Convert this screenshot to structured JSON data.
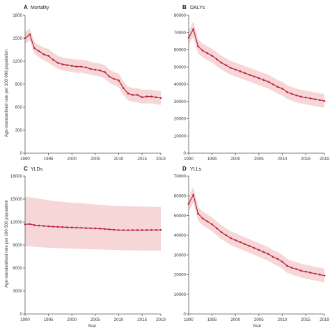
{
  "figure": {
    "ylabel": "Age-standardised rate per 100 000 population",
    "xlabel": "Year",
    "colors": {
      "line": "#b8203c",
      "band": "#f6d6d6",
      "axis": "#555555"
    }
  },
  "chart_data": [
    {
      "type": "line",
      "letter": "A",
      "title": "Mortality",
      "ylim": [
        0,
        1800
      ],
      "yticks": [
        0,
        300,
        600,
        900,
        1200,
        1500,
        1800
      ],
      "ytick_labels": [
        "0",
        "300",
        "600",
        "900",
        "1200",
        "1500",
        "1800"
      ],
      "xlim": [
        1990,
        2019
      ],
      "xticks": [
        1990,
        1995,
        2000,
        2005,
        2010,
        2015,
        2019
      ],
      "xtick_labels": [
        "1990",
        "1995",
        "2000",
        "2005",
        "2010",
        "2015",
        "2019"
      ],
      "x": [
        1990,
        1991,
        1992,
        1993,
        1994,
        1995,
        1996,
        1997,
        1998,
        1999,
        2000,
        2001,
        2002,
        2003,
        2004,
        2005,
        2006,
        2007,
        2008,
        2009,
        2010,
        2011,
        2012,
        2013,
        2014,
        2015,
        2016,
        2017,
        2018,
        2019
      ],
      "values": [
        1500,
        1550,
        1370,
        1330,
        1290,
        1270,
        1220,
        1180,
        1160,
        1150,
        1140,
        1130,
        1130,
        1120,
        1100,
        1090,
        1080,
        1060,
        1000,
        970,
        950,
        850,
        780,
        760,
        760,
        730,
        740,
        740,
        730,
        720
      ],
      "lower": [
        1430,
        1470,
        1300,
        1250,
        1210,
        1180,
        1140,
        1100,
        1080,
        1070,
        1060,
        1050,
        1050,
        1040,
        1020,
        1010,
        1000,
        980,
        920,
        890,
        860,
        760,
        690,
        670,
        665,
        650,
        650,
        650,
        640,
        630
      ],
      "upper": [
        1580,
        1630,
        1450,
        1410,
        1380,
        1360,
        1310,
        1270,
        1250,
        1240,
        1230,
        1220,
        1220,
        1210,
        1190,
        1180,
        1170,
        1150,
        1090,
        1060,
        1040,
        940,
        870,
        850,
        850,
        830,
        830,
        830,
        820,
        810
      ]
    },
    {
      "type": "line",
      "letter": "B",
      "title": "DALYs",
      "ylim": [
        0,
        80000
      ],
      "yticks": [
        0,
        10000,
        20000,
        30000,
        40000,
        50000,
        60000,
        70000,
        80000
      ],
      "ytick_labels": [
        "0",
        "10000",
        "20000",
        "30000",
        "40000",
        "50000",
        "60000",
        "70000",
        "80000"
      ],
      "xlim": [
        1990,
        2019
      ],
      "xticks": [
        1990,
        1995,
        2000,
        2005,
        2010,
        2015,
        2019
      ],
      "xtick_labels": [
        "1990",
        "1995",
        "2000",
        "2005",
        "2010",
        "2015",
        "2019"
      ],
      "x": [
        1990,
        1991,
        1992,
        1993,
        1994,
        1995,
        1996,
        1997,
        1998,
        1999,
        2000,
        2001,
        2002,
        2003,
        2004,
        2005,
        2006,
        2007,
        2008,
        2009,
        2010,
        2011,
        2012,
        2013,
        2014,
        2015,
        2016,
        2017,
        2018,
        2019
      ],
      "values": [
        67000,
        72000,
        62000,
        59500,
        58000,
        56500,
        54500,
        52500,
        51000,
        49500,
        48500,
        47500,
        46500,
        45500,
        44500,
        43500,
        42500,
        41500,
        40000,
        38500,
        37500,
        35500,
        34500,
        33500,
        32800,
        32300,
        31800,
        31300,
        30800,
        30300
      ],
      "lower": [
        63000,
        67500,
        58000,
        55500,
        54000,
        52500,
        50500,
        48500,
        47000,
        45500,
        44500,
        43500,
        42500,
        41500,
        40500,
        39500,
        38500,
        37500,
        36000,
        34500,
        33500,
        31500,
        30500,
        29500,
        28800,
        28300,
        27800,
        27300,
        26800,
        26300
      ],
      "upper": [
        71000,
        76500,
        66000,
        63500,
        62000,
        60500,
        58500,
        56500,
        55000,
        53500,
        52500,
        51500,
        50500,
        49500,
        48500,
        47500,
        46500,
        45500,
        44000,
        42500,
        41500,
        39500,
        38500,
        37500,
        36800,
        36300,
        35800,
        35300,
        34800,
        34300
      ]
    },
    {
      "type": "line",
      "letter": "C",
      "title": "YLDs",
      "ylim": [
        0,
        18000
      ],
      "yticks": [
        0,
        3000,
        6000,
        9000,
        12000,
        15000,
        18000
      ],
      "ytick_labels": [
        "0",
        "3000",
        "6000",
        "9000",
        "12000",
        "15000",
        "18000"
      ],
      "xlim": [
        1990,
        2019
      ],
      "xticks": [
        1990,
        1995,
        2000,
        2005,
        2010,
        2015,
        2019
      ],
      "xtick_labels": [
        "1990",
        "1995",
        "2000",
        "2005",
        "2010",
        "2015",
        "2019"
      ],
      "x": [
        1990,
        1991,
        1992,
        1993,
        1994,
        1995,
        1996,
        1997,
        1998,
        1999,
        2000,
        2001,
        2002,
        2003,
        2004,
        2005,
        2006,
        2007,
        2008,
        2009,
        2010,
        2011,
        2012,
        2013,
        2014,
        2015,
        2016,
        2017,
        2018,
        2019
      ],
      "values": [
        11700,
        11750,
        11600,
        11550,
        11500,
        11450,
        11400,
        11380,
        11350,
        11320,
        11300,
        11280,
        11250,
        11220,
        11200,
        11180,
        11150,
        11100,
        11050,
        11000,
        10950,
        10950,
        10950,
        10960,
        10960,
        10960,
        10960,
        10970,
        10970,
        10980
      ],
      "lower": [
        8800,
        8850,
        8760,
        8720,
        8680,
        8650,
        8620,
        8600,
        8580,
        8560,
        8540,
        8520,
        8500,
        8480,
        8460,
        8440,
        8420,
        8400,
        8380,
        8360,
        8340,
        8330,
        8320,
        8310,
        8300,
        8290,
        8280,
        8270,
        8260,
        8250
      ],
      "upper": [
        15300,
        15250,
        15150,
        15050,
        14950,
        14850,
        14750,
        14700,
        14650,
        14600,
        14550,
        14500,
        14450,
        14400,
        14350,
        14300,
        14250,
        14200,
        14150,
        14120,
        14100,
        14080,
        14070,
        14060,
        14050,
        14040,
        14030,
        14020,
        14010,
        14000
      ]
    },
    {
      "type": "line",
      "letter": "D",
      "title": "YLLs",
      "ylim": [
        0,
        70000
      ],
      "yticks": [
        0,
        10000,
        20000,
        30000,
        40000,
        50000,
        60000,
        70000
      ],
      "ytick_labels": [
        "0",
        "10000",
        "20000",
        "30000",
        "40000",
        "50000",
        "60000",
        "70000"
      ],
      "xlim": [
        1990,
        2019
      ],
      "xticks": [
        1990,
        1995,
        2000,
        2005,
        2010,
        2015,
        2019
      ],
      "xtick_labels": [
        "1990",
        "1995",
        "2000",
        "2005",
        "2010",
        "2015",
        "2019"
      ],
      "x": [
        1990,
        1991,
        1992,
        1993,
        1994,
        1995,
        1996,
        1997,
        1998,
        1999,
        2000,
        2001,
        2002,
        2003,
        2004,
        2005,
        2006,
        2007,
        2008,
        2009,
        2010,
        2011,
        2012,
        2013,
        2014,
        2015,
        2016,
        2017,
        2018,
        2019
      ],
      "values": [
        56000,
        60500,
        51000,
        48500,
        47000,
        45500,
        43500,
        41500,
        40000,
        38500,
        37500,
        36500,
        35500,
        34500,
        33500,
        32500,
        31500,
        30500,
        29000,
        28000,
        26500,
        24500,
        23500,
        22800,
        22000,
        21500,
        21000,
        20500,
        20000,
        19500
      ],
      "lower": [
        52500,
        56500,
        47500,
        45000,
        43500,
        42000,
        40000,
        38000,
        36500,
        35000,
        34000,
        33000,
        32000,
        31000,
        30000,
        29000,
        28000,
        27000,
        25500,
        24500,
        23000,
        21000,
        20000,
        19300,
        18500,
        18000,
        17500,
        17000,
        16500,
        16000
      ],
      "upper": [
        59500,
        64500,
        54500,
        52000,
        50500,
        49000,
        47000,
        45000,
        43500,
        42000,
        41000,
        40000,
        39000,
        38000,
        37000,
        36000,
        35000,
        34000,
        32500,
        31500,
        30000,
        28000,
        27000,
        26300,
        25500,
        25000,
        24500,
        24000,
        23500,
        23000
      ]
    }
  ]
}
